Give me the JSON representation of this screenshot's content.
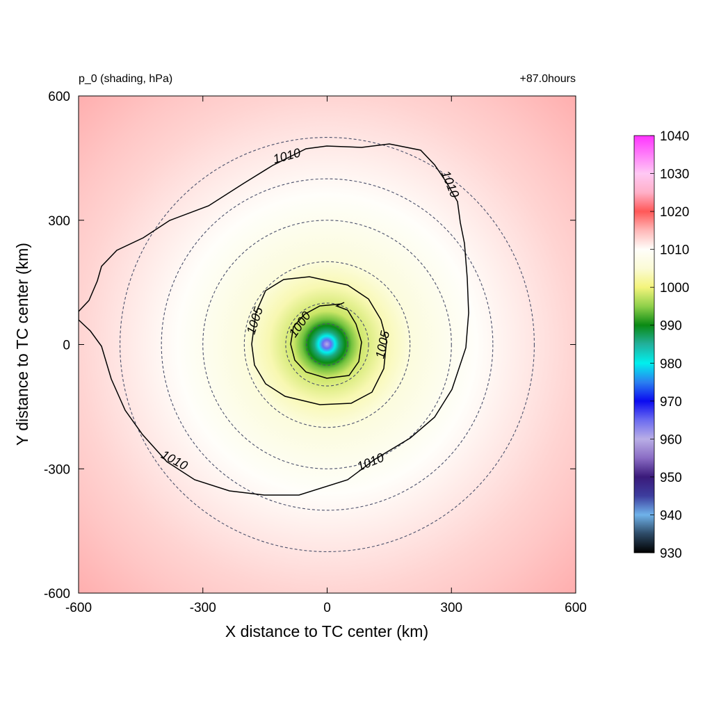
{
  "chart_data": {
    "type": "heatmap",
    "title_left": "p_0 (shading, hPa)",
    "title_right": "+87.0hours",
    "xlabel": "X distance to TC center (km)",
    "ylabel": "Y distance to TC center (km)",
    "xlim": [
      -600,
      600
    ],
    "ylim": [
      -600,
      600
    ],
    "xticks": [
      -600,
      -300,
      0,
      300,
      600
    ],
    "yticks": [
      -600,
      -300,
      0,
      300,
      600
    ],
    "xtick_labels": [
      "-600",
      "-300",
      "0",
      "300",
      "600"
    ],
    "ytick_labels": [
      "-600",
      "-300",
      "0",
      "300",
      "600"
    ],
    "center_pressure_hPa": 960,
    "colorbar": {
      "min": 930,
      "max": 1040,
      "ticks": [
        930,
        940,
        950,
        960,
        970,
        980,
        990,
        1000,
        1010,
        1020,
        1030,
        1040
      ],
      "tick_labels": [
        "930",
        "940",
        "950",
        "960",
        "970",
        "980",
        "990",
        "1000",
        "1010",
        "1020",
        "1030",
        "1040"
      ],
      "colors": [
        {
          "value": 930,
          "color": "#000000"
        },
        {
          "value": 935,
          "color": "#2d4a66"
        },
        {
          "value": 940,
          "color": "#6fb2ea"
        },
        {
          "value": 945,
          "color": "#3d3d9e"
        },
        {
          "value": 950,
          "color": "#3a1a7a"
        },
        {
          "value": 955,
          "color": "#8a6cc4"
        },
        {
          "value": 960,
          "color": "#b9aee6"
        },
        {
          "value": 965,
          "color": "#6b6bf0"
        },
        {
          "value": 970,
          "color": "#0b0bf0"
        },
        {
          "value": 975,
          "color": "#2a80f0"
        },
        {
          "value": 980,
          "color": "#00f0ee"
        },
        {
          "value": 985,
          "color": "#22b09c"
        },
        {
          "value": 990,
          "color": "#0a8a14"
        },
        {
          "value": 995,
          "color": "#8fd04a"
        },
        {
          "value": 1000,
          "color": "#f4f47c"
        },
        {
          "value": 1005,
          "color": "#fbfbd6"
        },
        {
          "value": 1010,
          "color": "#fffefa"
        },
        {
          "value": 1015,
          "color": "#ffb8b8"
        },
        {
          "value": 1020,
          "color": "#ff5858"
        },
        {
          "value": 1025,
          "color": "#ffb0c8"
        },
        {
          "value": 1030,
          "color": "#ffc8f4"
        },
        {
          "value": 1040,
          "color": "#ff33ff"
        }
      ]
    },
    "contours": [
      {
        "level": 1000,
        "label": "1000"
      },
      {
        "level": 1005,
        "label": "1005"
      },
      {
        "level": 1010,
        "label": "1010"
      }
    ],
    "range_circles_km": [
      50,
      100,
      200,
      300,
      400,
      500
    ]
  }
}
